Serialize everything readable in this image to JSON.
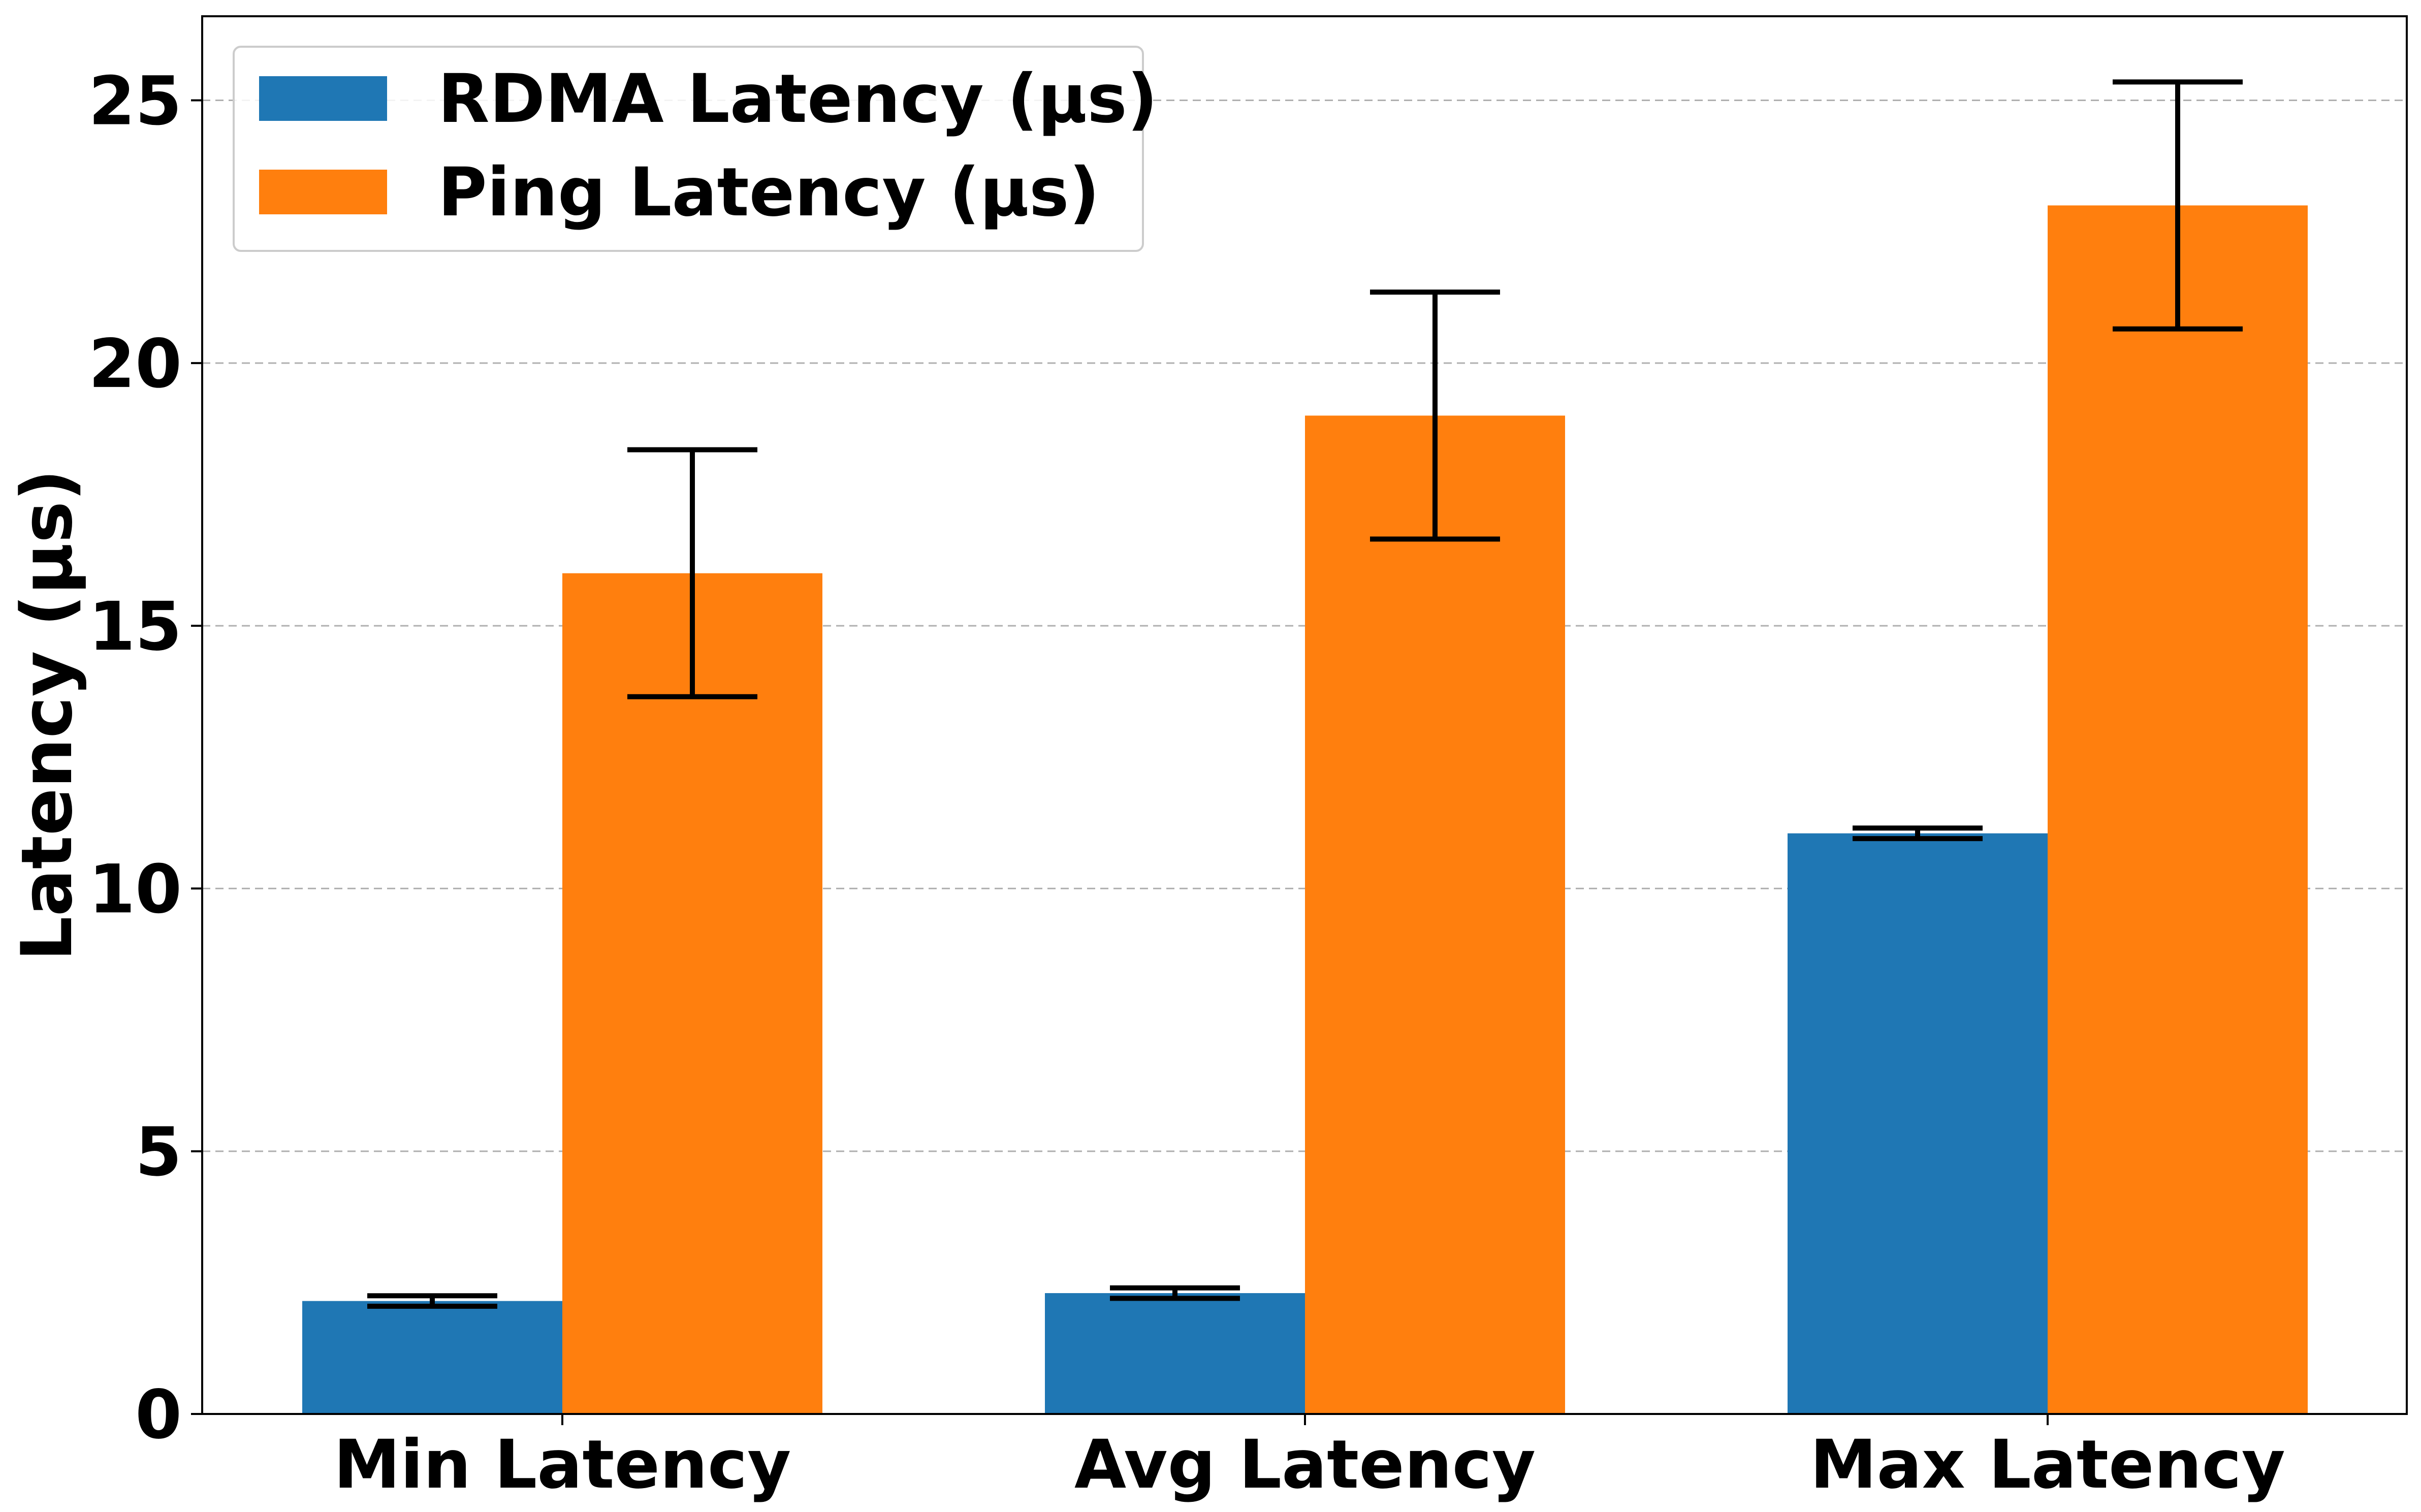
{
  "chart_data": {
    "type": "bar",
    "title": "",
    "xlabel": "",
    "ylabel": "Latency (µs)",
    "categories": [
      "Min Latency",
      "Avg Latency",
      "Max Latency"
    ],
    "ylim": [
      0,
      26.6
    ],
    "yticks": [
      0,
      5,
      10,
      15,
      20,
      25
    ],
    "grid": "y-dashed",
    "legend_position": "top-left",
    "series": [
      {
        "name": "RDMA Latency (µs)",
        "color": "#1f77b4",
        "values": [
          2.15,
          2.3,
          11.05
        ],
        "errors": [
          0.1,
          0.1,
          0.1
        ]
      },
      {
        "name": "Ping Latency (µs)",
        "color": "#ff7f0e",
        "values": [
          16.0,
          19.0,
          23.0
        ],
        "errors": [
          2.35,
          2.35,
          2.35
        ]
      }
    ]
  }
}
